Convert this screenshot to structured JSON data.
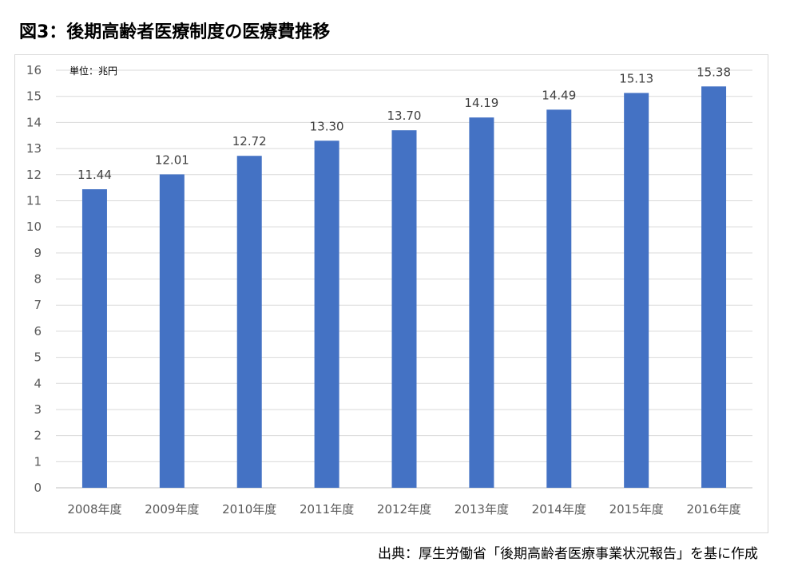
{
  "title": "図3：後期高齢者医療制度の医療費推移",
  "unit_label": "単位：兆円",
  "source": "出典：厚生労働省「後期高齢者医療事業状況報告」を基に作成",
  "colors": {
    "bar": "#4472c4",
    "grid": "#d9d9d9"
  },
  "chart_data": {
    "type": "bar",
    "categories": [
      "2008年度",
      "2009年度",
      "2010年度",
      "2011年度",
      "2012年度",
      "2013年度",
      "2014年度",
      "2015年度",
      "2016年度"
    ],
    "values": [
      11.44,
      12.01,
      12.72,
      13.3,
      13.7,
      14.19,
      14.49,
      15.13,
      15.38
    ],
    "data_labels": [
      "11.44",
      "12.01",
      "12.72",
      "13.30",
      "13.70",
      "14.19",
      "14.49",
      "15.13",
      "15.38"
    ],
    "yticks": [
      "0",
      "1",
      "2",
      "3",
      "4",
      "5",
      "6",
      "7",
      "8",
      "9",
      "10",
      "11",
      "12",
      "13",
      "14",
      "15",
      "16"
    ],
    "ylim": [
      0,
      16
    ],
    "grid": true,
    "legend": "none"
  }
}
